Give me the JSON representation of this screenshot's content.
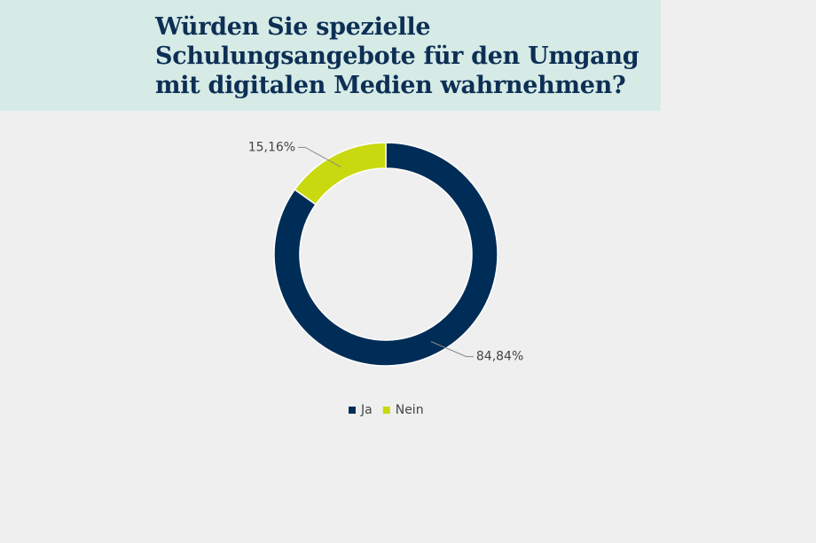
{
  "chart_data": {
    "type": "donut",
    "title": "Würden Sie spezielle Schulungsangebote für den Umgang mit digitalen Medien wahrnehmen?",
    "categories": [
      "Ja",
      "Nein"
    ],
    "values": [
      84.84,
      15.16
    ],
    "value_labels": [
      "84,84%",
      "15,16%"
    ],
    "colors": [
      "#002d57",
      "#c8d90f"
    ],
    "legend": "bottom"
  }
}
